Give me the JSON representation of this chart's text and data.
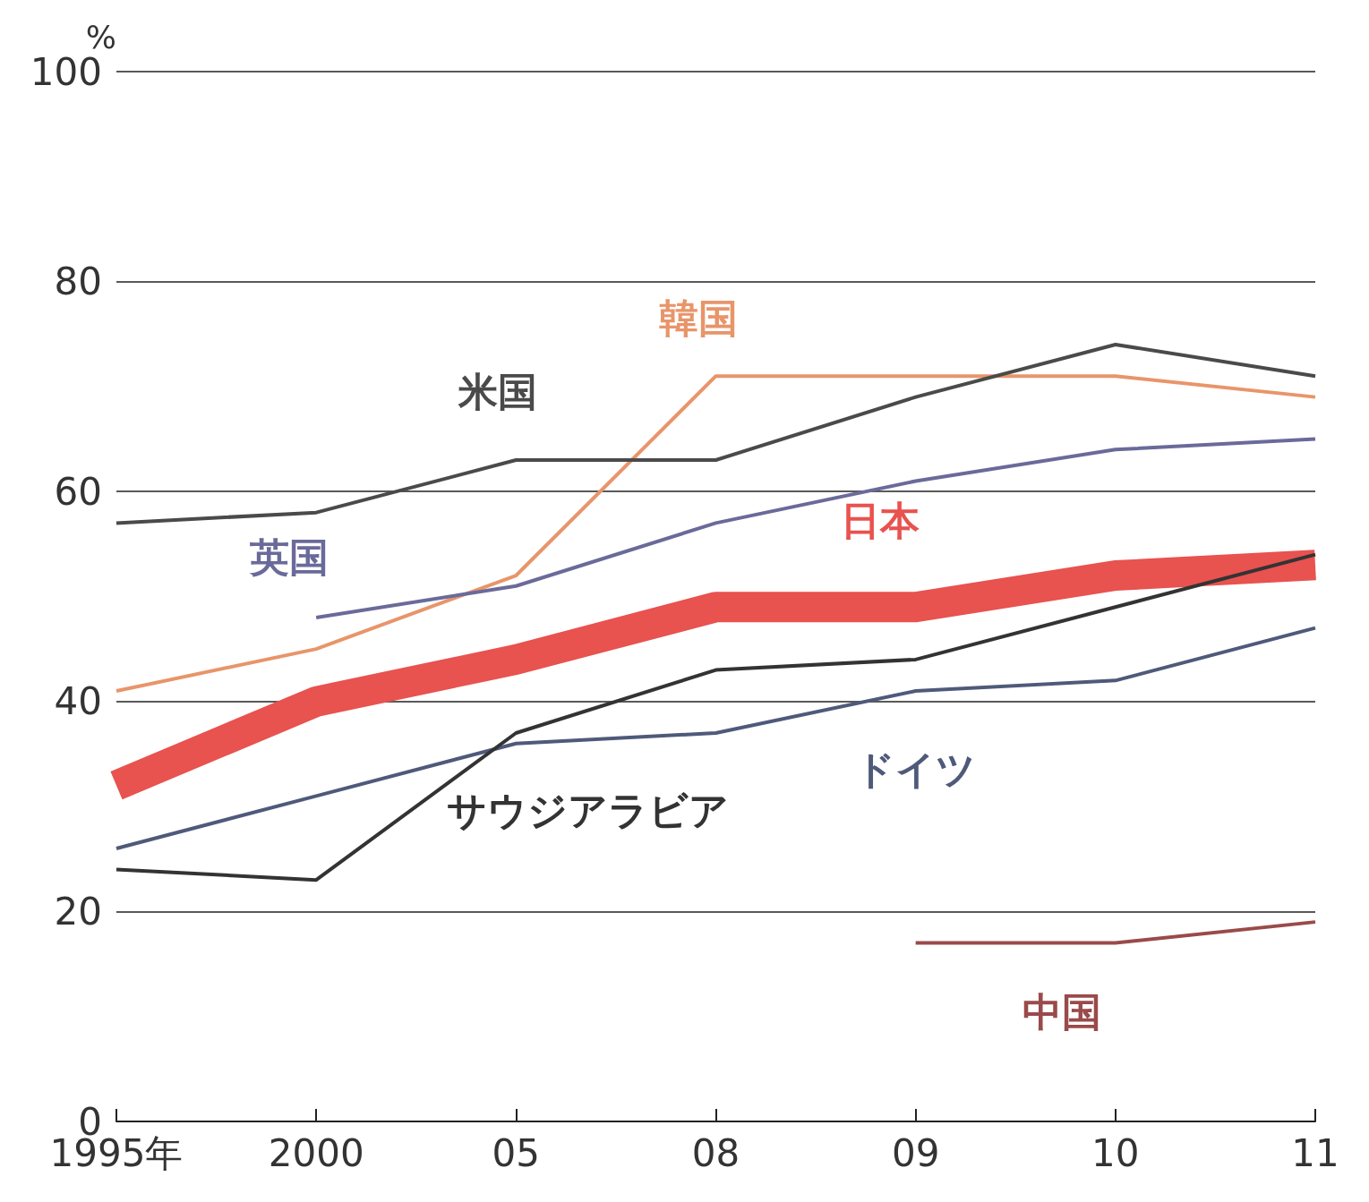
{
  "chart_data": {
    "type": "line",
    "ylabel": "%",
    "categories": [
      "1995年",
      "2000",
      "05",
      "08",
      "09",
      "10",
      "11"
    ],
    "series": [
      {
        "name": "韓国",
        "color": "#e8956a",
        "values": [
          41,
          45,
          52,
          71,
          71,
          71,
          69
        ]
      },
      {
        "name": "米国",
        "color": "#4a4a4a",
        "values": [
          57,
          58,
          63,
          63,
          69,
          74,
          71
        ]
      },
      {
        "name": "英国",
        "color": "#6a6a9a",
        "values": [
          null,
          48,
          51,
          57,
          61,
          64,
          65
        ]
      },
      {
        "name": "日本",
        "color": "#e8524f",
        "values": [
          32,
          40,
          44,
          49,
          49,
          52,
          53
        ]
      },
      {
        "name": "ドイツ",
        "color": "#4f5a7a",
        "values": [
          26,
          31,
          36,
          37,
          41,
          42,
          47
        ]
      },
      {
        "name": "サウジアラビア",
        "color": "#333333",
        "values": [
          24,
          23,
          37,
          43,
          44,
          49,
          54
        ]
      },
      {
        "name": "中国",
        "color": "#9a4a4a",
        "values": [
          null,
          null,
          null,
          null,
          17,
          17,
          19
        ]
      }
    ],
    "ylim": [
      0,
      100
    ],
    "yticks": [
      0,
      20,
      40,
      60,
      80,
      100
    ],
    "grid": "y",
    "legend": false,
    "marker": "none",
    "line_style": "solid"
  }
}
